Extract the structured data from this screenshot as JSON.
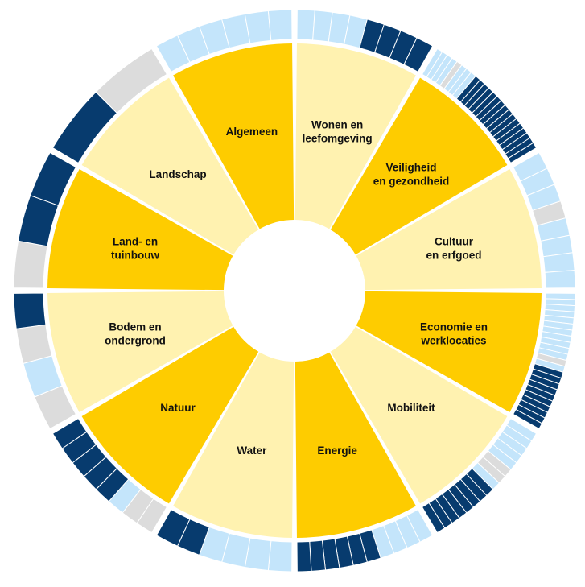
{
  "colors": {
    "yellow_dark": "#fecc00",
    "yellow_light": "#fff2b0",
    "navy": "#073b6e",
    "light_blue": "#c4e5fb",
    "gray": "#dcdcdc",
    "stroke": "#ffffff"
  },
  "chart_data": {
    "type": "sunburst",
    "title": "",
    "segments": [
      {
        "label": "Wonen en leefomgeving",
        "shade": "light",
        "outer": [
          "light_blue",
          "light_blue",
          "light_blue",
          "light_blue",
          "navy",
          "navy",
          "navy",
          "navy"
        ]
      },
      {
        "label": "Veiligheid en gezondheid",
        "shade": "dark",
        "outer": [
          "light_blue",
          "light_blue",
          "light_blue",
          "light_blue",
          "gray",
          "light_blue",
          "light_blue",
          "light_blue",
          "navy",
          "navy",
          "navy",
          "navy",
          "navy",
          "navy",
          "navy",
          "navy",
          "navy",
          "navy",
          "navy",
          "navy",
          "navy",
          "navy",
          "navy",
          "navy"
        ]
      },
      {
        "label": "Cultuur en erfgoed",
        "shade": "light",
        "outer": [
          "light_blue",
          "light_blue",
          "light_blue",
          "gray",
          "light_blue",
          "light_blue",
          "light_blue",
          "light_blue"
        ]
      },
      {
        "label": "Economie en werklocaties",
        "shade": "dark",
        "outer": [
          "light_blue",
          "light_blue",
          "light_blue",
          "light_blue",
          "light_blue",
          "light_blue",
          "light_blue",
          "light_blue",
          "light_blue",
          "light_blue",
          "light_blue",
          "gray",
          "light_blue",
          "navy",
          "navy",
          "navy",
          "navy",
          "navy",
          "navy",
          "navy",
          "navy",
          "navy",
          "navy"
        ]
      },
      {
        "label": "Mobiliteit",
        "shade": "light",
        "outer": [
          "light_blue",
          "light_blue",
          "light_blue",
          "light_blue",
          "light_blue",
          "gray",
          "gray",
          "light_blue",
          "navy",
          "navy",
          "navy",
          "navy",
          "navy",
          "navy",
          "navy",
          "navy"
        ]
      },
      {
        "label": "Energie",
        "shade": "dark",
        "outer": [
          "light_blue",
          "light_blue",
          "light_blue",
          "light_blue",
          "navy",
          "navy",
          "navy",
          "navy",
          "navy",
          "navy"
        ]
      },
      {
        "label": "Water",
        "shade": "light",
        "outer": [
          "light_blue",
          "light_blue",
          "light_blue",
          "light_blue",
          "navy",
          "navy"
        ]
      },
      {
        "label": "Natuur",
        "shade": "dark",
        "outer": [
          "gray",
          "gray",
          "light_blue",
          "navy",
          "navy",
          "navy",
          "navy",
          "navy"
        ]
      },
      {
        "label": "Bodem en ondergrond",
        "shade": "light",
        "outer": [
          "gray",
          "light_blue",
          "gray",
          "navy"
        ]
      },
      {
        "label": "Land- en tuinbouw",
        "shade": "dark",
        "outer": [
          "gray",
          "navy",
          "navy"
        ]
      },
      {
        "label": "Landschap",
        "shade": "light",
        "outer": [
          "navy",
          "gray"
        ]
      },
      {
        "label": "Algemeen",
        "shade": "dark",
        "outer": [
          "light_blue",
          "light_blue",
          "light_blue",
          "light_blue",
          "light_blue",
          "light_blue"
        ]
      }
    ]
  }
}
